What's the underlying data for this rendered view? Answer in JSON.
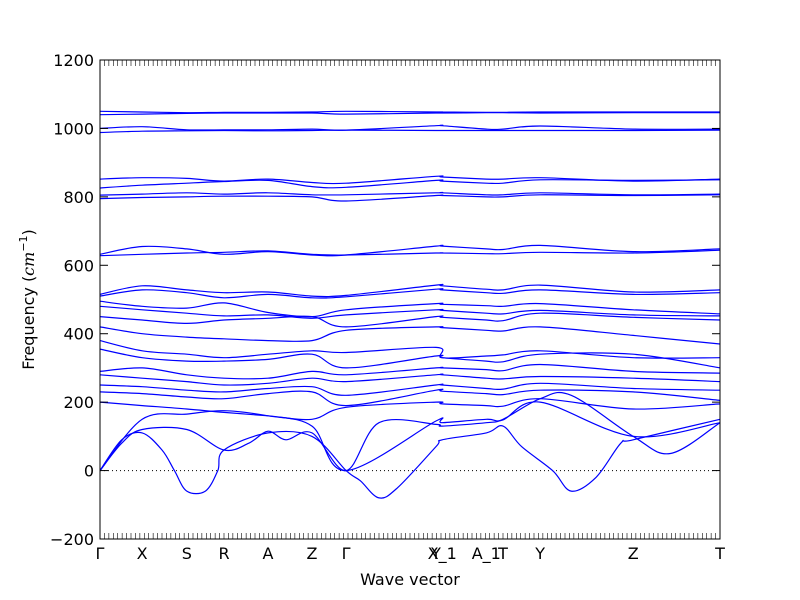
{
  "chart_data": {
    "type": "line",
    "xlabel": "Wave vector",
    "ylabel_text": "Frequency (",
    "ylabel_unit_base": "cm",
    "ylabel_unit_exp": "−1",
    "ylabel_close": ")",
    "ylim": [
      -200,
      1200
    ],
    "yticks": [
      -200,
      0,
      200,
      400,
      600,
      800,
      1000,
      1200
    ],
    "ytick_labels": [
      "−200",
      "0",
      "200",
      "400",
      "600",
      "800",
      "1000",
      "1200"
    ],
    "xlim": [
      0,
      1
    ],
    "kpoints": [
      {
        "label": "Γ",
        "x": 0.0
      },
      {
        "label": "X",
        "x": 0.068
      },
      {
        "label": "S",
        "x": 0.14
      },
      {
        "label": "R",
        "x": 0.2
      },
      {
        "label": "A",
        "x": 0.271
      },
      {
        "label": "Z",
        "x": 0.342
      },
      {
        "label": "Γ",
        "x": 0.397
      },
      {
        "label": "Y",
        "x": 0.542
      },
      {
        "label": "X_1",
        "x": 0.552
      },
      {
        "label": "A_1",
        "x": 0.623
      },
      {
        "label": "T",
        "x": 0.65
      },
      {
        "label": "Y",
        "x": 0.71
      },
      {
        "label": "Z",
        "x": 0.86
      },
      {
        "label": "T",
        "x": 1.0
      }
    ],
    "zero_line": 0,
    "line_color": "#0000ff",
    "series": [
      {
        "x": [
          0,
          0.068,
          0.14,
          0.2,
          0.271,
          0.342,
          0.397,
          0.542,
          0.552,
          0.623,
          0.65,
          0.71,
          0.86,
          1.0
        ],
        "y": [
          1050,
          1048,
          1046,
          1047,
          1047,
          1048,
          1050,
          1048,
          1048,
          1047,
          1047,
          1048,
          1048,
          1048
        ]
      },
      {
        "x": [
          0,
          0.068,
          0.14,
          0.2,
          0.271,
          0.342,
          0.397,
          0.542,
          0.552,
          0.623,
          0.65,
          0.71,
          0.86,
          1.0
        ],
        "y": [
          1040,
          1042,
          1044,
          1045,
          1045,
          1045,
          1042,
          1045,
          1045,
          1046,
          1046,
          1045,
          1046,
          1046
        ]
      },
      {
        "x": [
          0,
          0.068,
          0.14,
          0.2,
          0.271,
          0.342,
          0.397,
          0.542,
          0.552,
          0.623,
          0.65,
          0.71,
          0.86,
          1.0
        ],
        "y": [
          1000,
          1005,
          996,
          996,
          996,
          998,
          995,
          1008,
          1008,
          998,
          998,
          1007,
          998,
          998
        ]
      },
      {
        "x": [
          0,
          0.068,
          0.14,
          0.2,
          0.271,
          0.342,
          0.397,
          0.542,
          0.552,
          0.623,
          0.65,
          0.71,
          0.86,
          1.0
        ],
        "y": [
          988,
          992,
          993,
          994,
          993,
          994,
          995,
          994,
          994,
          994,
          994,
          994,
          994,
          995
        ]
      },
      {
        "x": [
          0,
          0.068,
          0.14,
          0.2,
          0.271,
          0.342,
          0.397,
          0.542,
          0.552,
          0.623,
          0.65,
          0.71,
          0.86,
          1.0
        ],
        "y": [
          852,
          856,
          854,
          846,
          852,
          842,
          840,
          860,
          858,
          852,
          852,
          856,
          846,
          852
        ]
      },
      {
        "x": [
          0,
          0.068,
          0.14,
          0.2,
          0.271,
          0.342,
          0.397,
          0.542,
          0.552,
          0.623,
          0.65,
          0.71,
          0.86,
          1.0
        ],
        "y": [
          826,
          834,
          840,
          845,
          848,
          830,
          828,
          848,
          846,
          840,
          840,
          850,
          848,
          850
        ]
      },
      {
        "x": [
          0,
          0.068,
          0.14,
          0.2,
          0.271,
          0.342,
          0.397,
          0.542,
          0.552,
          0.623,
          0.65,
          0.71,
          0.86,
          1.0
        ],
        "y": [
          805,
          808,
          812,
          808,
          812,
          806,
          806,
          812,
          812,
          806,
          806,
          812,
          806,
          808
        ]
      },
      {
        "x": [
          0,
          0.068,
          0.14,
          0.2,
          0.271,
          0.342,
          0.397,
          0.542,
          0.552,
          0.623,
          0.65,
          0.71,
          0.86,
          1.0
        ],
        "y": [
          795,
          798,
          800,
          802,
          802,
          800,
          788,
          804,
          804,
          800,
          800,
          806,
          804,
          806
        ]
      },
      {
        "x": [
          0,
          0.068,
          0.14,
          0.2,
          0.271,
          0.342,
          0.397,
          0.542,
          0.552,
          0.623,
          0.65,
          0.71,
          0.86,
          1.0
        ],
        "y": [
          632,
          655,
          648,
          632,
          640,
          630,
          630,
          656,
          656,
          648,
          646,
          658,
          640,
          648
        ]
      },
      {
        "x": [
          0,
          0.068,
          0.14,
          0.2,
          0.271,
          0.342,
          0.397,
          0.542,
          0.552,
          0.623,
          0.65,
          0.71,
          0.86,
          1.0
        ],
        "y": [
          628,
          632,
          636,
          638,
          642,
          632,
          630,
          636,
          636,
          634,
          634,
          638,
          636,
          644
        ]
      },
      {
        "x": [
          0,
          0.068,
          0.14,
          0.2,
          0.271,
          0.342,
          0.397,
          0.542,
          0.552,
          0.623,
          0.65,
          0.71,
          0.86,
          1.0
        ],
        "y": [
          515,
          540,
          528,
          520,
          522,
          510,
          512,
          542,
          540,
          530,
          528,
          542,
          522,
          528
        ]
      },
      {
        "x": [
          0,
          0.068,
          0.14,
          0.2,
          0.271,
          0.342,
          0.397,
          0.542,
          0.552,
          0.623,
          0.65,
          0.71,
          0.86,
          1.0
        ],
        "y": [
          510,
          528,
          520,
          505,
          515,
          505,
          508,
          530,
          528,
          520,
          518,
          528,
          515,
          520
        ]
      },
      {
        "x": [
          0,
          0.068,
          0.14,
          0.2,
          0.271,
          0.342,
          0.397,
          0.542,
          0.552,
          0.623,
          0.65,
          0.71,
          0.86,
          1.0
        ],
        "y": [
          495,
          480,
          475,
          490,
          462,
          450,
          470,
          488,
          486,
          482,
          480,
          488,
          470,
          458
        ]
      },
      {
        "x": [
          0,
          0.068,
          0.14,
          0.2,
          0.271,
          0.342,
          0.397,
          0.542,
          0.552,
          0.623,
          0.65,
          0.71,
          0.86,
          1.0
        ],
        "y": [
          480,
          470,
          460,
          452,
          455,
          445,
          455,
          470,
          468,
          460,
          458,
          468,
          455,
          452
        ]
      },
      {
        "x": [
          0,
          0.068,
          0.14,
          0.2,
          0.271,
          0.342,
          0.397,
          0.542,
          0.552,
          0.623,
          0.65,
          0.71,
          0.86,
          1.0
        ],
        "y": [
          450,
          440,
          430,
          440,
          445,
          450,
          420,
          450,
          448,
          440,
          438,
          460,
          448,
          440
        ]
      },
      {
        "x": [
          0,
          0.068,
          0.14,
          0.2,
          0.271,
          0.342,
          0.397,
          0.542,
          0.552,
          0.623,
          0.65,
          0.71,
          0.86,
          1.0
        ],
        "y": [
          420,
          400,
          390,
          385,
          380,
          380,
          410,
          420,
          418,
          410,
          408,
          420,
          395,
          370
        ]
      },
      {
        "x": [
          0,
          0.068,
          0.14,
          0.2,
          0.271,
          0.342,
          0.397,
          0.542,
          0.552,
          0.623,
          0.65,
          0.71,
          0.86,
          1.0
        ],
        "y": [
          380,
          350,
          340,
          330,
          340,
          350,
          345,
          360,
          330,
          335,
          338,
          350,
          330,
          330
        ]
      },
      {
        "x": [
          0,
          0.068,
          0.14,
          0.2,
          0.271,
          0.342,
          0.397,
          0.542,
          0.552,
          0.623,
          0.65,
          0.71,
          0.86,
          1.0
        ],
        "y": [
          355,
          330,
          320,
          320,
          325,
          340,
          300,
          335,
          330,
          320,
          318,
          340,
          340,
          300
        ]
      },
      {
        "x": [
          0,
          0.068,
          0.14,
          0.2,
          0.271,
          0.342,
          0.397,
          0.542,
          0.552,
          0.623,
          0.65,
          0.71,
          0.86,
          1.0
        ],
        "y": [
          290,
          300,
          280,
          270,
          270,
          290,
          280,
          300,
          300,
          295,
          292,
          310,
          290,
          285
        ]
      },
      {
        "x": [
          0,
          0.068,
          0.14,
          0.2,
          0.271,
          0.342,
          0.397,
          0.542,
          0.552,
          0.623,
          0.65,
          0.71,
          0.86,
          1.0
        ],
        "y": [
          280,
          270,
          260,
          250,
          255,
          270,
          260,
          280,
          280,
          270,
          268,
          275,
          270,
          260
        ]
      },
      {
        "x": [
          0,
          0.068,
          0.14,
          0.2,
          0.271,
          0.342,
          0.397,
          0.542,
          0.552,
          0.623,
          0.65,
          0.71,
          0.86,
          1.0
        ],
        "y": [
          250,
          245,
          235,
          230,
          240,
          245,
          220,
          250,
          250,
          240,
          238,
          255,
          240,
          235
        ]
      },
      {
        "x": [
          0,
          0.068,
          0.14,
          0.2,
          0.271,
          0.342,
          0.397,
          0.542,
          0.552,
          0.623,
          0.65,
          0.71,
          0.86,
          1.0
        ],
        "y": [
          230,
          225,
          215,
          210,
          225,
          230,
          190,
          235,
          232,
          225,
          222,
          235,
          230,
          205
        ]
      },
      {
        "x": [
          0,
          0.068,
          0.14,
          0.2,
          0.271,
          0.342,
          0.397,
          0.542,
          0.552,
          0.623,
          0.65,
          0.71,
          0.86,
          1.0
        ],
        "y": [
          200,
          190,
          180,
          170,
          160,
          150,
          185,
          200,
          195,
          190,
          188,
          210,
          180,
          195
        ]
      },
      {
        "x": [
          0,
          0.068,
          0.14,
          0.2,
          0.271,
          0.342,
          0.397,
          0.542,
          0.552,
          0.623,
          0.65,
          0.71,
          0.86,
          1.0
        ],
        "y": [
          0,
          150,
          165,
          175,
          160,
          130,
          0,
          145,
          140,
          150,
          148,
          200,
          100,
          140
        ]
      },
      {
        "x": [
          0,
          0.035,
          0.068,
          0.14,
          0.2,
          0.24,
          0.271,
          0.3,
          0.342,
          0.397,
          0.45,
          0.542,
          0.552,
          0.623,
          0.65,
          0.71,
          0.76,
          0.86,
          0.92,
          1.0
        ],
        "y": [
          0,
          80,
          120,
          120,
          60,
          80,
          115,
          90,
          110,
          0,
          140,
          135,
          130,
          140,
          150,
          210,
          220,
          100,
          50,
          140
        ]
      },
      {
        "x": [
          0,
          0.035,
          0.068,
          0.1,
          0.12,
          0.14,
          0.17,
          0.19,
          0.2,
          0.271,
          0.342,
          0.397,
          0.42,
          0.45,
          0.48,
          0.542,
          0.552,
          0.623,
          0.65,
          0.68,
          0.73,
          0.76,
          0.8,
          0.84,
          0.86,
          1.0
        ],
        "y": [
          0,
          90,
          110,
          60,
          0,
          -60,
          -60,
          0,
          60,
          110,
          100,
          0,
          -30,
          -80,
          -50,
          70,
          90,
          110,
          130,
          70,
          0,
          -60,
          -20,
          80,
          90,
          150
        ]
      }
    ]
  }
}
